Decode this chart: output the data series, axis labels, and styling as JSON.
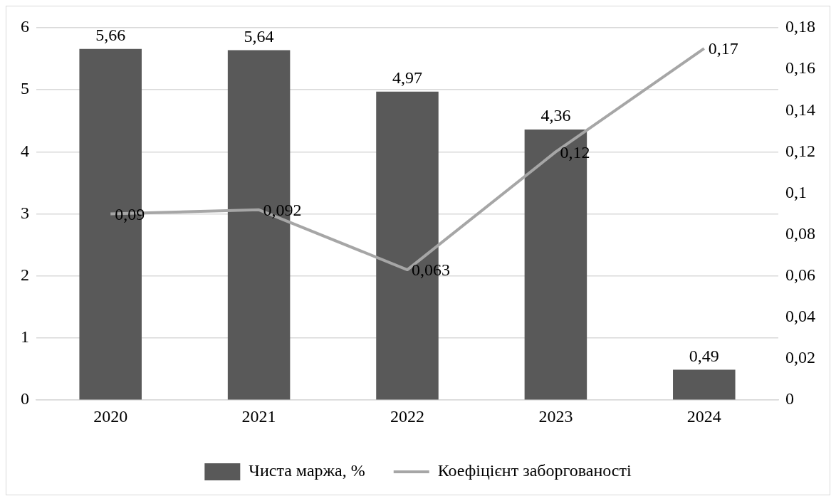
{
  "chart_data": {
    "type": "bar",
    "categories": [
      "2020",
      "2021",
      "2022",
      "2023",
      "2024"
    ],
    "series": [
      {
        "name": "Чиста маржа, %",
        "color": "#595959",
        "values": [
          5.66,
          5.64,
          4.97,
          4.36,
          0.49
        ],
        "value_labels": [
          "5,66",
          "5,64",
          "4,97",
          "4,36",
          "0,49"
        ]
      },
      {
        "name": "Коефіцієнт заборгованості",
        "type": "line",
        "axis": "y2",
        "color": "#a6a6a6",
        "values": [
          0.09,
          0.092,
          0.063,
          0.12,
          0.17
        ],
        "value_labels": [
          "0,09",
          "0,092",
          "0,063",
          "0,12",
          "0,17"
        ]
      }
    ],
    "ylim": [
      0,
      6
    ],
    "yticks": [
      0,
      1,
      2,
      3,
      4,
      5,
      6
    ],
    "y2lim": [
      0,
      0.18
    ],
    "y2ticks": [
      0,
      {
        "value": 0.02,
        "label": "0,02"
      },
      {
        "value": 0.04,
        "label": "0,04"
      },
      {
        "value": 0.06,
        "label": "0,06"
      },
      {
        "value": 0.08,
        "label": "0,08"
      },
      {
        "value": 0.1,
        "label": "0,1"
      },
      {
        "value": 0.12,
        "label": "0,12"
      },
      {
        "value": 0.14,
        "label": "0,14"
      },
      {
        "value": 0.16,
        "label": "0,16"
      },
      {
        "value": 0.18,
        "label": "0,18"
      }
    ],
    "grid": "y",
    "legend": "bottom",
    "marker": "none",
    "line_style": "solid"
  }
}
